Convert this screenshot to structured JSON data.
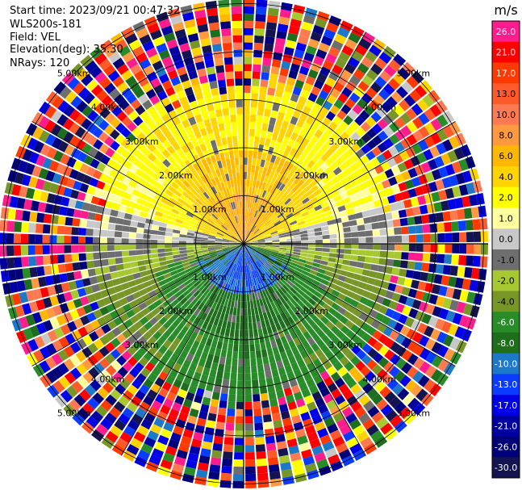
{
  "header": {
    "start_time": "Start time: 2023/09/21 00:47:32",
    "instrument": "WLS200s-181",
    "field": "Field: VEL",
    "elevation": "Elevation(deg): 35.30",
    "nrays": "NRays: 120"
  },
  "colorbar": {
    "unit_label": "m/s",
    "tick_labels": [
      "26.0",
      "21.0",
      "17.0",
      "13.0",
      "10.0",
      "8.0",
      "6.0",
      "4.0",
      "2.0",
      "1.0",
      "0.0",
      "-1.0",
      "-2.0",
      "-4.0",
      "-6.0",
      "-8.0",
      "-10.0",
      "-13.0",
      "-17.0",
      "-21.0",
      "-26.0",
      "-30.0"
    ],
    "colors": [
      "#ff1d8e",
      "#ff0000",
      "#ff3a00",
      "#ff5a2a",
      "#ff7a50",
      "#ff9a40",
      "#ffb800",
      "#ffd400",
      "#ffff00",
      "#ffffa0",
      "#c8c8c8",
      "#6e6e6e",
      "#a8c832",
      "#789628",
      "#288c28",
      "#1e6e1e",
      "#1e78c8",
      "#0a3cff",
      "#0000e6",
      "#0000a0",
      "#000078",
      "#141450"
    ]
  },
  "chart_data": {
    "type": "heatmap",
    "subtype": "polar PPI (plan position indicator)",
    "field": "VEL",
    "units": "m/s",
    "elevation_deg": 35.3,
    "nrays": 120,
    "range_rings_km": [
      1,
      2,
      3,
      4,
      5
    ],
    "range_ring_labels": [
      "1.00km",
      "2.00km",
      "3.00km",
      "4.00km",
      "5.00km"
    ],
    "color_scale": {
      "boundaries": [
        -30,
        -26,
        -21,
        -17,
        -13,
        -10,
        -8,
        -6,
        -4,
        -2,
        -1,
        0,
        1,
        2,
        4,
        6,
        8,
        10,
        13,
        17,
        21,
        26,
        30
      ]
    },
    "pattern_by_range": [
      {
        "range_km": [
          0,
          1.0
        ],
        "north_half": "+6 to +10 (orange/salmon)",
        "south_half": "-8 to -13 (blue)"
      },
      {
        "range_km": [
          1.0,
          2.0
        ],
        "north_half": "+4 to +8 (orange)",
        "south_half": "-6 to -8 (green)"
      },
      {
        "range_km": [
          2.0,
          3.0
        ],
        "north_half": "+2 to +6 (yellow)",
        "south_half": "-4 to -6 (green)"
      },
      {
        "range_km": [
          3.0,
          5.7
        ],
        "north_half": "noisy, full scale",
        "south_half": "noisy, full scale"
      }
    ],
    "grid": true
  }
}
